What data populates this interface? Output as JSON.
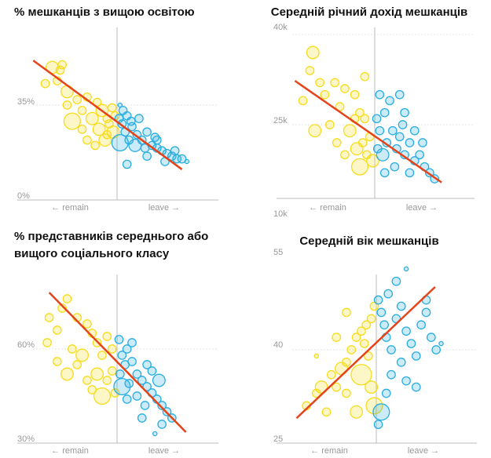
{
  "colors": {
    "remain": "#f7dc1e",
    "leave": "#2aaee0",
    "trend": "#e5441a",
    "axis": "#bbbbbb"
  },
  "chart_data": [
    {
      "type": "scatter",
      "title": "% мешканців з вищою освітою",
      "xlabel_left": "← remain",
      "xlabel_right": "leave →",
      "yticks": [
        {
          "value": 35,
          "label": "35%"
        },
        {
          "value": 0,
          "label": "0%"
        }
      ],
      "ylim": [
        0,
        58
      ],
      "xlim": [
        -1,
        1
      ],
      "trend": [
        [
          -0.84,
          51.6
        ],
        [
          0.65,
          11.1
        ]
      ],
      "remain_points": [
        [
          -0.65,
          49,
          3
        ],
        [
          -0.55,
          50,
          2
        ],
        [
          -0.57,
          48,
          2
        ],
        [
          -0.6,
          44,
          2
        ],
        [
          -0.72,
          43,
          2
        ],
        [
          -0.5,
          40,
          3
        ],
        [
          -0.4,
          37,
          2
        ],
        [
          -0.35,
          33,
          2
        ],
        [
          -0.3,
          38,
          2
        ],
        [
          -0.2,
          36,
          2
        ],
        [
          -0.15,
          33,
          3
        ],
        [
          -0.1,
          30,
          2
        ],
        [
          -0.05,
          34,
          2
        ],
        [
          -0.25,
          30,
          3
        ],
        [
          -0.18,
          26,
          3
        ],
        [
          -0.3,
          22,
          2
        ],
        [
          -0.12,
          22,
          3
        ],
        [
          -0.08,
          28,
          2
        ],
        [
          -0.02,
          31,
          2
        ],
        [
          -0.45,
          29,
          4
        ],
        [
          -0.35,
          26,
          2
        ],
        [
          -0.1,
          24,
          2
        ],
        [
          -0.5,
          35,
          2
        ],
        [
          -0.22,
          20,
          2
        ],
        [
          -0.04,
          25,
          3
        ]
      ],
      "leave_points": [
        [
          0.02,
          30,
          2
        ],
        [
          0.05,
          28,
          2
        ],
        [
          0.1,
          31,
          2
        ],
        [
          0.08,
          25,
          2
        ],
        [
          0.15,
          27,
          2
        ],
        [
          0.2,
          24,
          2
        ],
        [
          0.12,
          22,
          2
        ],
        [
          0.25,
          22,
          2
        ],
        [
          0.3,
          25,
          2
        ],
        [
          0.35,
          20,
          2
        ],
        [
          0.4,
          19,
          2
        ],
        [
          0.45,
          18,
          2
        ],
        [
          0.5,
          17,
          2
        ],
        [
          0.55,
          16,
          2
        ],
        [
          0.6,
          15,
          2
        ],
        [
          0.65,
          15,
          2
        ],
        [
          0.4,
          22,
          2
        ],
        [
          0.18,
          20,
          3
        ],
        [
          0.03,
          21,
          4
        ],
        [
          0.1,
          13,
          2
        ],
        [
          0.3,
          16,
          2
        ],
        [
          0.48,
          14,
          2
        ],
        [
          0.22,
          30,
          2
        ],
        [
          0.03,
          35,
          1
        ],
        [
          0.7,
          14,
          1
        ],
        [
          0.06,
          33,
          2
        ],
        [
          0.14,
          29,
          2
        ],
        [
          0.28,
          19,
          2
        ],
        [
          0.38,
          23,
          2
        ],
        [
          0.58,
          18,
          2
        ]
      ]
    },
    {
      "type": "scatter",
      "title": "Середній річний дохід мешканців",
      "xlabel_left": "← remain",
      "xlabel_right": "leave →",
      "yticks": [
        {
          "value": 40,
          "label": "40k"
        },
        {
          "value": 25,
          "label": "25k"
        },
        {
          "value": 10,
          "label": "10k"
        }
      ],
      "ylim": [
        10,
        40
      ],
      "xlim": [
        -1,
        1
      ],
      "trend": [
        [
          -0.8,
          32.3
        ],
        [
          0.67,
          15.4
        ]
      ],
      "remain_points": [
        [
          -0.62,
          37,
          3
        ],
        [
          -0.65,
          34,
          2
        ],
        [
          -0.55,
          32,
          2
        ],
        [
          -0.72,
          29,
          2
        ],
        [
          -0.5,
          30,
          2
        ],
        [
          -0.4,
          32,
          2
        ],
        [
          -0.35,
          28,
          2
        ],
        [
          -0.3,
          31,
          2
        ],
        [
          -0.2,
          30,
          2
        ],
        [
          -0.15,
          27,
          2
        ],
        [
          -0.1,
          26,
          2
        ],
        [
          -0.6,
          24,
          3
        ],
        [
          -0.45,
          25,
          2
        ],
        [
          -0.25,
          24,
          3
        ],
        [
          -0.18,
          21,
          3
        ],
        [
          -0.12,
          22,
          2
        ],
        [
          -0.05,
          23,
          2
        ],
        [
          -0.08,
          20,
          2
        ],
        [
          -0.15,
          18,
          4
        ],
        [
          -0.3,
          20,
          2
        ],
        [
          -0.02,
          19,
          3
        ],
        [
          -0.38,
          22,
          2
        ],
        [
          -0.1,
          33,
          2
        ],
        [
          -0.2,
          26,
          2
        ]
      ],
      "leave_points": [
        [
          0.02,
          26,
          2
        ],
        [
          0.05,
          24,
          2
        ],
        [
          0.1,
          27,
          2
        ],
        [
          0.12,
          22,
          2
        ],
        [
          0.18,
          24,
          2
        ],
        [
          0.22,
          21,
          2
        ],
        [
          0.25,
          23,
          2
        ],
        [
          0.3,
          20,
          2
        ],
        [
          0.35,
          22,
          2
        ],
        [
          0.4,
          19,
          2
        ],
        [
          0.45,
          20,
          2
        ],
        [
          0.5,
          18,
          2
        ],
        [
          0.55,
          17,
          2
        ],
        [
          0.6,
          16,
          2
        ],
        [
          0.15,
          29,
          2
        ],
        [
          0.25,
          30,
          2
        ],
        [
          0.3,
          27,
          2
        ],
        [
          0.08,
          20,
          3
        ],
        [
          0.2,
          18,
          2
        ],
        [
          0.4,
          24,
          2
        ],
        [
          0.05,
          30,
          2
        ],
        [
          0.35,
          17,
          2
        ],
        [
          0.28,
          25,
          2
        ],
        [
          0.48,
          22,
          2
        ],
        [
          0.1,
          17,
          2
        ],
        [
          0.03,
          21,
          2
        ]
      ]
    },
    {
      "type": "scatter",
      "title_lines": [
        "% представників середнього або",
        "вищого соціального класу"
      ],
      "xlabel_left": "← remain",
      "xlabel_right": "leave →",
      "yticks": [
        {
          "value": 60,
          "label": "60%"
        },
        {
          "value": 30,
          "label": "30%"
        }
      ],
      "ylim": [
        30,
        80
      ],
      "xlim": [
        -1,
        1
      ],
      "trend": [
        [
          -0.68,
          78
        ],
        [
          0.69,
          33.5
        ]
      ],
      "remain_points": [
        [
          -0.5,
          76,
          2
        ],
        [
          -0.55,
          73,
          2
        ],
        [
          -0.68,
          70,
          2
        ],
        [
          -0.6,
          66,
          2
        ],
        [
          -0.4,
          70,
          2
        ],
        [
          -0.3,
          68,
          2
        ],
        [
          -0.25,
          65,
          2
        ],
        [
          -0.2,
          62,
          2
        ],
        [
          -0.1,
          64,
          2
        ],
        [
          -0.7,
          62,
          2
        ],
        [
          -0.45,
          60,
          2
        ],
        [
          -0.35,
          58,
          3
        ],
        [
          -0.15,
          58,
          2
        ],
        [
          -0.05,
          60,
          2
        ],
        [
          -0.5,
          52,
          3
        ],
        [
          -0.3,
          50,
          2
        ],
        [
          -0.2,
          52,
          3
        ],
        [
          -0.1,
          50,
          2
        ],
        [
          -0.15,
          45,
          4
        ],
        [
          -0.05,
          53,
          2
        ],
        [
          -0.4,
          55,
          2
        ],
        [
          -0.25,
          47,
          2
        ],
        [
          -0.02,
          46,
          2
        ],
        [
          -0.6,
          56,
          2
        ]
      ],
      "leave_points": [
        [
          0.02,
          63,
          2
        ],
        [
          0.05,
          58,
          2
        ],
        [
          0.08,
          55,
          2
        ],
        [
          0.1,
          60,
          2
        ],
        [
          0.15,
          56,
          2
        ],
        [
          0.2,
          52,
          2
        ],
        [
          0.25,
          50,
          2
        ],
        [
          0.3,
          48,
          2
        ],
        [
          0.35,
          46,
          2
        ],
        [
          0.4,
          44,
          2
        ],
        [
          0.45,
          42,
          2
        ],
        [
          0.5,
          40,
          2
        ],
        [
          0.55,
          38,
          2
        ],
        [
          0.12,
          49,
          2
        ],
        [
          0.2,
          45,
          2
        ],
        [
          0.28,
          42,
          2
        ],
        [
          0.05,
          48,
          4
        ],
        [
          0.35,
          53,
          2
        ],
        [
          0.42,
          50,
          3
        ],
        [
          0.1,
          44,
          2
        ],
        [
          0.25,
          38,
          2
        ],
        [
          0.03,
          52,
          2
        ],
        [
          0.15,
          62,
          2
        ],
        [
          0.3,
          55,
          2
        ],
        [
          0.45,
          36,
          2
        ],
        [
          0.38,
          33,
          1
        ]
      ]
    },
    {
      "type": "scatter",
      "title": "Середній вік мешканців",
      "xlabel_left": "← remain",
      "xlabel_right": "leave →",
      "yticks": [
        {
          "value": 55,
          "label": "55"
        },
        {
          "value": 40,
          "label": "40"
        },
        {
          "value": 25,
          "label": "25"
        }
      ],
      "ylim": [
        25,
        55
      ],
      "xlim": [
        -1,
        1
      ],
      "trend": [
        [
          -0.8,
          29
        ],
        [
          0.59,
          50.1
        ]
      ],
      "remain_points": [
        [
          -0.7,
          31,
          2
        ],
        [
          -0.6,
          33,
          2
        ],
        [
          -0.5,
          30,
          2
        ],
        [
          -0.55,
          34,
          3
        ],
        [
          -0.45,
          36,
          2
        ],
        [
          -0.4,
          34,
          2
        ],
        [
          -0.35,
          37,
          3
        ],
        [
          -0.3,
          38,
          2
        ],
        [
          -0.25,
          40,
          2
        ],
        [
          -0.2,
          42,
          2
        ],
        [
          -0.15,
          43,
          2
        ],
        [
          -0.1,
          44,
          2
        ],
        [
          -0.05,
          45,
          2
        ],
        [
          -0.02,
          47,
          2
        ],
        [
          -0.3,
          33,
          2
        ],
        [
          -0.2,
          30,
          3
        ],
        [
          -0.15,
          36,
          5
        ],
        [
          -0.08,
          39,
          2
        ],
        [
          -0.05,
          34,
          3
        ],
        [
          -0.02,
          31,
          4
        ],
        [
          -0.12,
          41,
          2
        ],
        [
          -0.4,
          42,
          2
        ],
        [
          -0.6,
          39,
          1
        ],
        [
          -0.3,
          46,
          2
        ]
      ],
      "leave_points": [
        [
          0.02,
          48,
          2
        ],
        [
          0.05,
          46,
          2
        ],
        [
          0.08,
          44,
          2
        ],
        [
          0.1,
          42,
          2
        ],
        [
          0.15,
          40,
          2
        ],
        [
          0.2,
          45,
          2
        ],
        [
          0.25,
          47,
          2
        ],
        [
          0.3,
          43,
          2
        ],
        [
          0.35,
          41,
          2
        ],
        [
          0.4,
          39,
          2
        ],
        [
          0.45,
          44,
          2
        ],
        [
          0.5,
          46,
          2
        ],
        [
          0.55,
          42,
          2
        ],
        [
          0.6,
          40,
          2
        ],
        [
          0.15,
          36,
          2
        ],
        [
          0.25,
          38,
          2
        ],
        [
          0.3,
          35,
          2
        ],
        [
          0.1,
          33,
          2
        ],
        [
          0.05,
          30,
          4
        ],
        [
          0.2,
          51,
          2
        ],
        [
          0.3,
          53,
          1
        ],
        [
          0.5,
          48,
          2
        ],
        [
          0.4,
          34,
          2
        ],
        [
          0.02,
          28,
          2
        ],
        [
          0.65,
          41,
          1
        ],
        [
          0.12,
          49,
          2
        ]
      ]
    }
  ]
}
